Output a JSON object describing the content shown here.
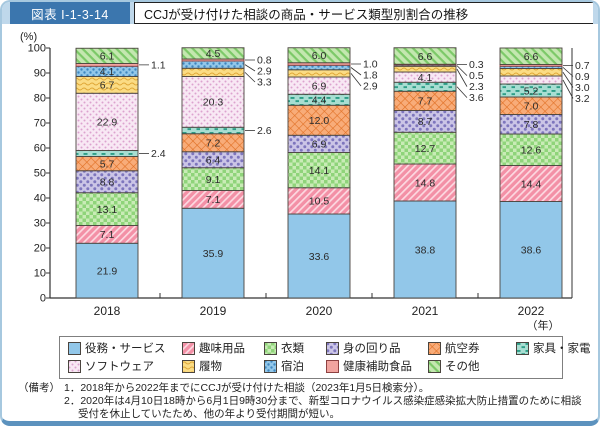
{
  "header": {
    "figure_label": "図表 I-1-3-14",
    "title": "CCJが受け付けた相談の商品・サービス類型別割合の推移"
  },
  "chart_data": {
    "type": "bar",
    "stacked": true,
    "percent_stack": true,
    "title": "CCJが受け付けた相談の商品・サービス類型別割合の推移",
    "unit_label": "(%)",
    "year_suffix": "（年）",
    "xlabel": "",
    "ylabel": "(%)",
    "ylim": [
      0,
      100
    ],
    "ytick_step": 10,
    "grid": false,
    "legend_position": "bottom-box",
    "categories": [
      "2018",
      "2019",
      "2020",
      "2021",
      "2022"
    ],
    "series": [
      {
        "name": "役務・サービス",
        "color": "#92C7E9",
        "pattern": "solid",
        "values": [
          21.9,
          35.9,
          33.6,
          38.8,
          38.6
        ]
      },
      {
        "name": "趣味用品",
        "color": "#F390A6",
        "pattern": "diag-pink",
        "values": [
          7.1,
          7.1,
          10.5,
          14.8,
          14.4
        ]
      },
      {
        "name": "衣類",
        "color": "#AEDC9C",
        "pattern": "grid-green",
        "values": [
          13.1,
          9.1,
          14.1,
          12.7,
          12.6
        ]
      },
      {
        "name": "身の回り品",
        "color": "#C9C3E4",
        "pattern": "dots-purple",
        "values": [
          8.8,
          6.4,
          6.9,
          8.7,
          7.8
        ]
      },
      {
        "name": "航空券",
        "color": "#F8AC79",
        "pattern": "cross-orange",
        "values": [
          5.7,
          7.2,
          12.0,
          7.7,
          7.0
        ]
      },
      {
        "name": "家具・家電",
        "color": "#A8DED2",
        "pattern": "dash-teal",
        "values": [
          2.4,
          2.6,
          4.4,
          3.6,
          5.2
        ]
      },
      {
        "name": "ソフトウェア",
        "color": "#F8E8F4",
        "pattern": "dots-lightpink",
        "values": [
          22.9,
          20.3,
          6.9,
          4.1,
          3.2
        ]
      },
      {
        "name": "履物",
        "color": "#FBDC84",
        "pattern": "wave-yellow",
        "values": [
          6.7,
          3.3,
          2.9,
          2.3,
          3.0
        ]
      },
      {
        "name": "宿泊",
        "color": "#92C7E9",
        "pattern": "dots-blue",
        "values": [
          4.1,
          2.9,
          1.8,
          0.5,
          0.9
        ]
      },
      {
        "name": "健康補助食品",
        "color": "#F2A49F",
        "pattern": "solid",
        "stroke": "#8E4242",
        "values": [
          1.1,
          0.8,
          1.0,
          0.3,
          0.7
        ]
      },
      {
        "name": "その他",
        "color": "#C4E7B0",
        "pattern": "diag-green",
        "values": [
          6.1,
          4.5,
          6.0,
          6.6,
          6.6
        ]
      }
    ]
  },
  "notes": {
    "label": "（備考）",
    "items": [
      "1．2018年から2022年までにCCJが受け付けた相談（2023年1月5日検索分）。",
      "2．2020年は4月10日18時から6月1日9時30分まで、新型コロナウイルス感染症感染拡大防止措置のために相談受付を休止していたため、他の年より受付期間が短い。"
    ]
  }
}
